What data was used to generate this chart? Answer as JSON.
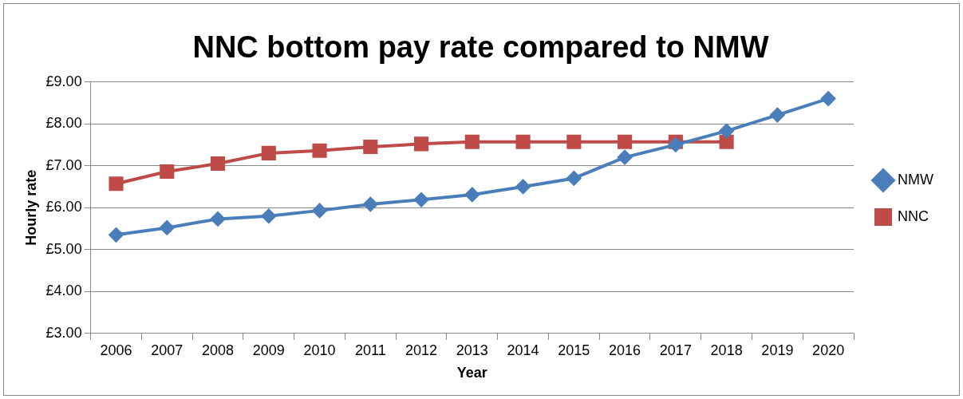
{
  "chart_data": {
    "type": "line",
    "title": "NNC bottom pay rate compared to NMW",
    "xlabel": "Year",
    "ylabel": "Hourly rate",
    "categories": [
      "2006",
      "2007",
      "2008",
      "2009",
      "2010",
      "2011",
      "2012",
      "2013",
      "2014",
      "2015",
      "2016",
      "2017",
      "2018",
      "2019",
      "2020"
    ],
    "series": [
      {
        "name": "NMW",
        "color": "#4a7ebb",
        "marker": "diamond",
        "values": [
          5.35,
          5.52,
          5.73,
          5.8,
          5.93,
          6.08,
          6.19,
          6.31,
          6.5,
          6.7,
          7.2,
          7.5,
          7.83,
          8.21,
          8.6
        ]
      },
      {
        "name": "NNC",
        "color": "#be4b48",
        "marker": "square",
        "values": [
          6.57,
          6.86,
          7.05,
          7.3,
          7.36,
          7.45,
          7.52,
          7.57,
          7.57,
          7.57,
          7.57,
          7.57,
          7.57,
          null,
          null
        ]
      }
    ],
    "ylim": [
      3,
      9
    ],
    "yticks": [
      {
        "value": 3,
        "label": "£3.00"
      },
      {
        "value": 4,
        "label": "£4.00"
      },
      {
        "value": 5,
        "label": "£5.00"
      },
      {
        "value": 6,
        "label": "£6.00"
      },
      {
        "value": 7,
        "label": "£7.00"
      },
      {
        "value": 8,
        "label": "£8.00"
      },
      {
        "value": 9,
        "label": "£9.00"
      }
    ],
    "grid": "y",
    "legend": "right",
    "line_style": "solid"
  }
}
